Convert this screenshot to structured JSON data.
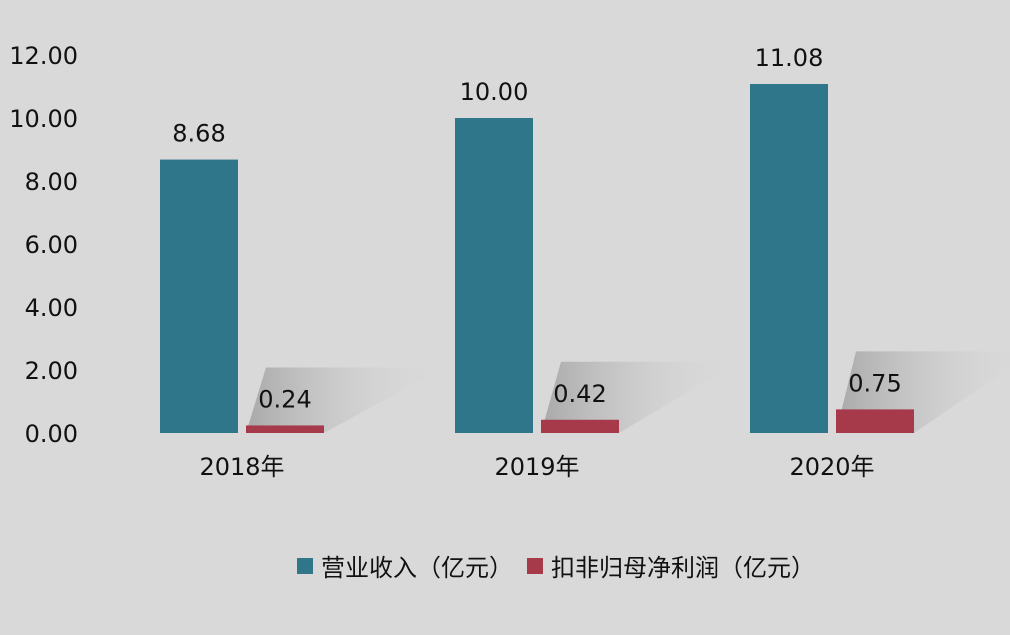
{
  "chart_data": {
    "type": "bar",
    "categories": [
      "2018年",
      "2019年",
      "2020年"
    ],
    "series": [
      {
        "name": "营业收入（亿元）",
        "values": [
          8.68,
          10.0,
          11.08
        ],
        "color": "#2f768b"
      },
      {
        "name": "扣非归母净利润（亿元）",
        "values": [
          0.24,
          0.42,
          0.75
        ],
        "color": "#a63a4b"
      }
    ],
    "data_labels": [
      [
        "8.68",
        "10.00",
        "11.08"
      ],
      [
        "0.24",
        "0.42",
        "0.75"
      ]
    ],
    "yticks": [
      "0.00",
      "2.00",
      "4.00",
      "6.00",
      "8.00",
      "10.00",
      "12.00"
    ],
    "ylim": [
      0,
      12
    ],
    "grid": false,
    "legend_position": "bottom",
    "background": "#d9d9d9"
  }
}
